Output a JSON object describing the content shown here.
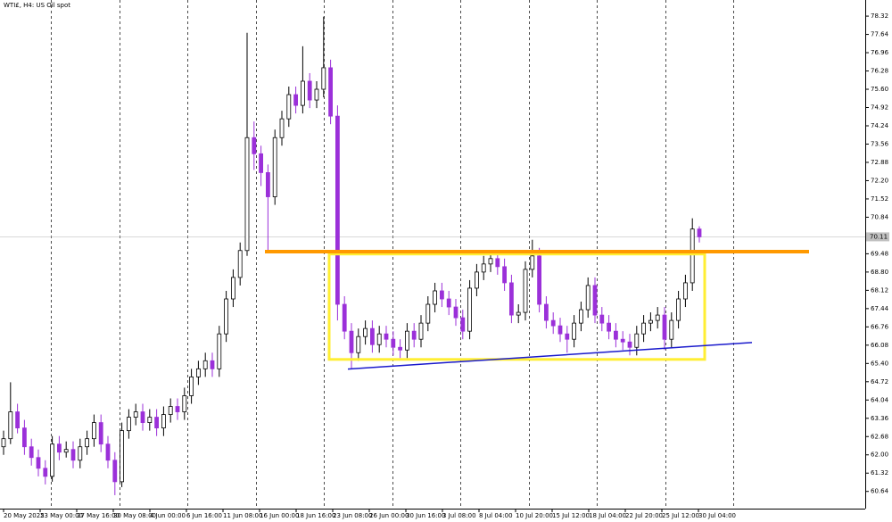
{
  "chart_data": {
    "type": "candlestick",
    "title": "WTI£, H4:  US Oil spot",
    "ylim": [
      60.0,
      78.92
    ],
    "yticks": [
      78.32,
      77.64,
      76.96,
      76.28,
      {
        "value": 75.6,
        "label": "75.60"
      },
      74.92,
      74.24,
      73.56,
      72.88,
      {
        "value": 72.2,
        "label": "72.20"
      },
      71.52,
      70.84,
      69.48,
      {
        "value": 68.8,
        "label": "68.80"
      },
      68.12,
      67.44,
      66.76,
      66.08,
      {
        "value": 65.4,
        "label": "65.40"
      },
      64.72,
      64.04,
      63.36,
      62.68,
      {
        "value": 62,
        "label": "62.00"
      },
      61.32,
      60.64
    ],
    "xlabels": [
      "20 May 2025",
      "23 May 00:00",
      "27 May 16:00",
      "30 May 08:00",
      "4 Jun 00:00",
      "6 Jun 16:00",
      "11 Jun 08:00",
      "16 Jun 00:00",
      "18 Jun 16:00",
      "23 Jun 08:00",
      "26 Jun 00:00",
      "30 Jun 16:00",
      "3 Jul 08:00",
      "8 Jul 04:00",
      "10 Jul 20:00",
      "15 Jul 12:00",
      "18 Jul 04:00",
      "22 Jul 20:00",
      "25 Jul 12:00",
      "30 Jul 04:00"
    ],
    "up_color": "#000000",
    "down_color": "#9b30d9",
    "current_price": {
      "value": 70.11,
      "label": "70.11"
    },
    "resistance": {
      "value": 69.56,
      "color": "#ff9900"
    },
    "range_box": {
      "top": 69.47,
      "bottom": 65.55,
      "color": "#ffee33"
    },
    "trendline": {
      "start": 65.19,
      "end": 66.18,
      "color": "#1a1acc"
    },
    "candles": [
      [
        62.3,
        62.9,
        62.0,
        62.6
      ],
      [
        62.6,
        64.7,
        62.4,
        63.6
      ],
      [
        63.6,
        63.9,
        62.8,
        63.0
      ],
      [
        63.0,
        63.3,
        62.0,
        62.3
      ],
      [
        62.3,
        62.6,
        61.6,
        61.9
      ],
      [
        61.9,
        62.2,
        61.2,
        61.5
      ],
      [
        61.5,
        61.8,
        60.9,
        61.2
      ],
      [
        61.2,
        62.7,
        61.0,
        62.4
      ],
      [
        62.4,
        62.7,
        61.8,
        62.1
      ],
      [
        62.1,
        62.5,
        61.9,
        62.2
      ],
      [
        62.2,
        62.5,
        61.5,
        61.8
      ],
      [
        61.8,
        62.6,
        61.5,
        62.3
      ],
      [
        62.3,
        62.9,
        62.0,
        62.6
      ],
      [
        62.6,
        63.5,
        62.3,
        63.2
      ],
      [
        63.2,
        63.5,
        62.1,
        62.4
      ],
      [
        62.4,
        62.7,
        61.5,
        61.8
      ],
      [
        61.8,
        62.1,
        60.5,
        61.0
      ],
      [
        61.0,
        63.2,
        60.8,
        62.9
      ],
      [
        62.9,
        63.7,
        62.6,
        63.4
      ],
      [
        63.4,
        63.9,
        63.1,
        63.6
      ],
      [
        63.6,
        63.9,
        62.9,
        63.2
      ],
      [
        63.2,
        63.7,
        62.9,
        63.4
      ],
      [
        63.4,
        63.7,
        62.7,
        63.0
      ],
      [
        63.0,
        63.8,
        62.7,
        63.5
      ],
      [
        63.5,
        64.1,
        63.2,
        63.8
      ],
      [
        63.8,
        64.1,
        63.3,
        63.6
      ],
      [
        63.6,
        64.5,
        63.3,
        64.2
      ],
      [
        64.2,
        65.2,
        63.9,
        64.9
      ],
      [
        64.9,
        65.5,
        64.6,
        65.2
      ],
      [
        65.2,
        65.8,
        64.9,
        65.5
      ],
      [
        65.5,
        65.8,
        64.9,
        65.2
      ],
      [
        65.2,
        66.8,
        64.9,
        66.5
      ],
      [
        66.5,
        68.1,
        66.2,
        67.8
      ],
      [
        67.8,
        68.9,
        67.5,
        68.6
      ],
      [
        68.6,
        69.9,
        68.3,
        69.6
      ],
      [
        69.6,
        77.7,
        69.4,
        73.8
      ],
      [
        73.8,
        74.4,
        72.6,
        73.2
      ],
      [
        73.2,
        73.5,
        72.0,
        72.5
      ],
      [
        72.5,
        72.8,
        69.5,
        71.6
      ],
      [
        71.6,
        74.1,
        71.3,
        73.8
      ],
      [
        73.8,
        74.8,
        73.5,
        74.5
      ],
      [
        74.5,
        75.7,
        74.2,
        75.4
      ],
      [
        75.4,
        75.7,
        74.7,
        75.0
      ],
      [
        75.0,
        77.2,
        74.7,
        75.9
      ],
      [
        75.9,
        76.2,
        74.9,
        75.2
      ],
      [
        75.2,
        75.9,
        74.9,
        75.6
      ],
      [
        75.6,
        78.3,
        75.3,
        76.4
      ],
      [
        76.4,
        76.7,
        74.3,
        74.6
      ],
      [
        74.6,
        75.0,
        67.0,
        67.6
      ],
      [
        67.6,
        67.9,
        66.3,
        66.6
      ],
      [
        66.6,
        66.9,
        65.2,
        65.8
      ],
      [
        65.8,
        66.7,
        65.5,
        66.4
      ],
      [
        66.4,
        67.0,
        66.1,
        66.7
      ],
      [
        66.7,
        67.0,
        65.8,
        66.1
      ],
      [
        66.1,
        66.8,
        65.8,
        66.5
      ],
      [
        66.5,
        66.8,
        66.0,
        66.3
      ],
      [
        66.3,
        66.6,
        65.7,
        66.0
      ],
      [
        66.0,
        66.3,
        65.6,
        65.9
      ],
      [
        65.9,
        66.9,
        65.6,
        66.6
      ],
      [
        66.6,
        66.9,
        66.0,
        66.3
      ],
      [
        66.3,
        67.2,
        66.0,
        66.9
      ],
      [
        66.9,
        67.9,
        66.6,
        67.6
      ],
      [
        67.6,
        68.4,
        67.3,
        68.1
      ],
      [
        68.1,
        68.4,
        67.5,
        67.8
      ],
      [
        67.8,
        68.1,
        67.2,
        67.5
      ],
      [
        67.5,
        67.8,
        66.8,
        67.1
      ],
      [
        67.1,
        67.4,
        66.3,
        66.6
      ],
      [
        66.6,
        68.5,
        66.3,
        68.2
      ],
      [
        68.2,
        69.1,
        67.9,
        68.8
      ],
      [
        68.8,
        69.4,
        68.5,
        69.1
      ],
      [
        69.1,
        69.6,
        68.8,
        69.3
      ],
      [
        69.3,
        69.6,
        68.7,
        69.0
      ],
      [
        69.0,
        69.3,
        68.1,
        68.4
      ],
      [
        68.4,
        68.7,
        66.9,
        67.2
      ],
      [
        67.2,
        67.6,
        66.9,
        67.3
      ],
      [
        67.3,
        69.2,
        67.0,
        68.9
      ],
      [
        68.9,
        70.0,
        68.6,
        69.4
      ],
      [
        69.4,
        69.7,
        67.3,
        67.6
      ],
      [
        67.6,
        67.9,
        66.7,
        67.0
      ],
      [
        67.0,
        67.3,
        66.5,
        66.8
      ],
      [
        66.8,
        67.1,
        66.2,
        66.5
      ],
      [
        66.5,
        66.8,
        65.8,
        66.3
      ],
      [
        66.3,
        67.2,
        66.0,
        66.9
      ],
      [
        66.9,
        67.7,
        66.6,
        67.4
      ],
      [
        67.4,
        68.6,
        67.1,
        68.3
      ],
      [
        68.3,
        68.6,
        66.9,
        67.2
      ],
      [
        67.2,
        67.5,
        66.6,
        66.9
      ],
      [
        66.9,
        67.2,
        66.3,
        66.6
      ],
      [
        66.6,
        66.9,
        66.0,
        66.3
      ],
      [
        66.3,
        66.6,
        65.9,
        66.2
      ],
      [
        66.2,
        66.5,
        65.7,
        66.0
      ],
      [
        66.0,
        66.8,
        65.7,
        66.5
      ],
      [
        66.5,
        67.2,
        66.2,
        66.9
      ],
      [
        66.9,
        67.3,
        66.6,
        67.0
      ],
      [
        67.0,
        67.5,
        66.7,
        67.2
      ],
      [
        67.2,
        67.5,
        65.9,
        66.3
      ],
      [
        66.3,
        67.3,
        66.0,
        67.0
      ],
      [
        67.0,
        68.1,
        66.7,
        67.8
      ],
      [
        67.8,
        68.7,
        67.5,
        68.4
      ],
      [
        68.4,
        70.8,
        68.1,
        70.4
      ],
      [
        70.4,
        70.5,
        69.9,
        70.11
      ]
    ]
  }
}
